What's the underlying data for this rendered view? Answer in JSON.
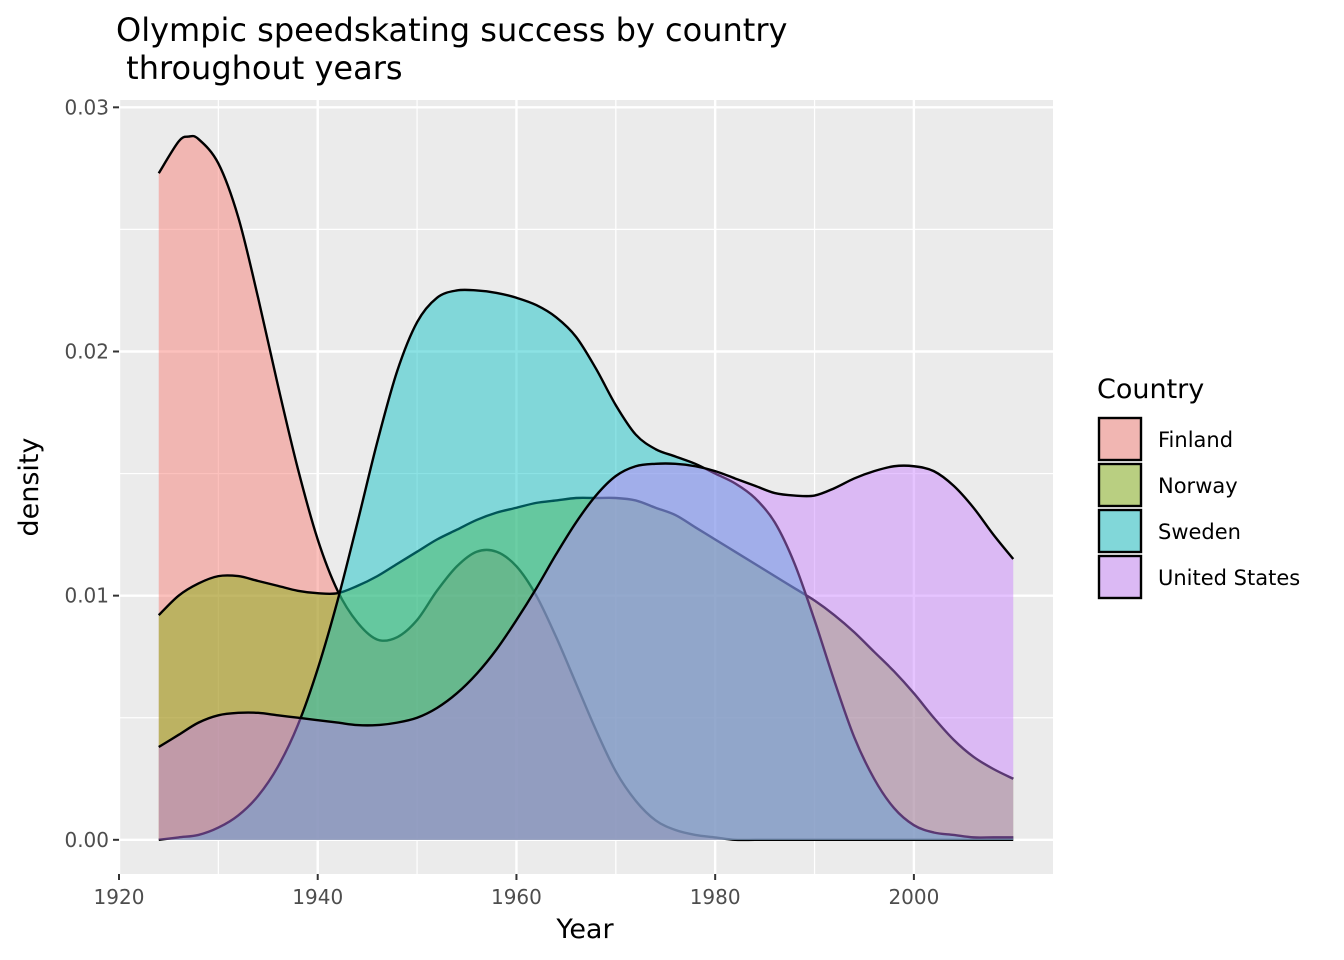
{
  "chart_data": {
    "type": "area",
    "title_lines": [
      "Olympic speedskating success by country",
      " throughout years"
    ],
    "xlabel": "Year",
    "ylabel": "density",
    "xlim": [
      1920,
      2014
    ],
    "ylim": [
      -0.0014,
      0.0303
    ],
    "x_ticks": [
      1920,
      1940,
      1960,
      1980,
      2000
    ],
    "x_tick_labels": [
      "1920",
      "1940",
      "1960",
      "1980",
      "2000"
    ],
    "y_ticks": [
      0,
      0.01,
      0.02,
      0.03
    ],
    "y_tick_labels": [
      "0.00",
      "0.01",
      "0.02",
      "0.03"
    ],
    "grid": true,
    "legend": {
      "title": "Country",
      "position": "right"
    },
    "series": [
      {
        "name": "Finland",
        "color": "#F8766D",
        "x": [
          1924,
          1926,
          1927,
          1928,
          1930,
          1932,
          1934,
          1936,
          1938,
          1940,
          1942,
          1944,
          1946,
          1948,
          1950,
          1952,
          1954,
          1956,
          1958,
          1960,
          1962,
          1964,
          1966,
          1968,
          1970,
          1972,
          1974,
          1976,
          1978,
          1980,
          1982,
          1984,
          1986,
          1988,
          1990,
          1992,
          1994,
          1996,
          1998,
          2000,
          2002,
          2004,
          2006,
          2008,
          2010
        ],
        "y": [
          0.0273,
          0.0286,
          0.0288,
          0.0287,
          0.0277,
          0.0255,
          0.0222,
          0.0186,
          0.0152,
          0.0123,
          0.0102,
          0.0089,
          0.0082,
          0.0083,
          0.009,
          0.0102,
          0.0112,
          0.0118,
          0.0118,
          0.0112,
          0.01,
          0.0083,
          0.0064,
          0.0045,
          0.0028,
          0.0016,
          0.0008,
          0.0004,
          0.0002,
          0.0001,
          0.0,
          0.0,
          0.0,
          0.0,
          0.0,
          0.0,
          0.0,
          0.0,
          0.0,
          0.0,
          0.0,
          0.0,
          0.0,
          0.0,
          0.0
        ]
      },
      {
        "name": "Norway",
        "color": "#7CAE00",
        "x": [
          1924,
          1926,
          1928,
          1930,
          1932,
          1934,
          1936,
          1938,
          1940,
          1942,
          1944,
          1946,
          1948,
          1950,
          1952,
          1954,
          1956,
          1958,
          1960,
          1962,
          1964,
          1966,
          1968,
          1970,
          1972,
          1974,
          1976,
          1978,
          1980,
          1982,
          1984,
          1986,
          1988,
          1990,
          1992,
          1994,
          1996,
          1998,
          2000,
          2002,
          2004,
          2006,
          2008,
          2010
        ],
        "y": [
          0.0092,
          0.01,
          0.0105,
          0.0108,
          0.0108,
          0.0106,
          0.0104,
          0.0102,
          0.0101,
          0.0101,
          0.0104,
          0.0108,
          0.0113,
          0.0118,
          0.0123,
          0.0127,
          0.0131,
          0.0134,
          0.0136,
          0.0138,
          0.0139,
          0.014,
          0.014,
          0.014,
          0.0139,
          0.0136,
          0.0133,
          0.0128,
          0.0123,
          0.0118,
          0.0113,
          0.0108,
          0.0103,
          0.0098,
          0.0092,
          0.0085,
          0.0077,
          0.0069,
          0.006,
          0.005,
          0.0041,
          0.0034,
          0.0029,
          0.0025
        ]
      },
      {
        "name": "Sweden",
        "color": "#00BFC4",
        "x": [
          1924,
          1926,
          1928,
          1930,
          1932,
          1934,
          1936,
          1938,
          1940,
          1942,
          1944,
          1946,
          1948,
          1950,
          1952,
          1954,
          1956,
          1958,
          1960,
          1962,
          1964,
          1966,
          1968,
          1970,
          1972,
          1974,
          1976,
          1978,
          1980,
          1982,
          1984,
          1986,
          1988,
          1990,
          1992,
          1994,
          1996,
          1998,
          2000,
          2002,
          2004,
          2006,
          2008,
          2010
        ],
        "y": [
          0.0,
          0.0001,
          0.0002,
          0.0005,
          0.001,
          0.0018,
          0.003,
          0.0047,
          0.007,
          0.0098,
          0.013,
          0.0163,
          0.0192,
          0.0212,
          0.0222,
          0.0225,
          0.0225,
          0.0224,
          0.0222,
          0.0219,
          0.0214,
          0.0206,
          0.0193,
          0.0178,
          0.0166,
          0.016,
          0.0157,
          0.0154,
          0.015,
          0.0146,
          0.014,
          0.013,
          0.0113,
          0.009,
          0.0065,
          0.0042,
          0.0025,
          0.0013,
          0.0006,
          0.0003,
          0.0002,
          0.0001,
          0.0001,
          0.0001
        ]
      },
      {
        "name": "United States",
        "color": "#C77CFF",
        "x": [
          1924,
          1926,
          1928,
          1930,
          1932,
          1934,
          1936,
          1938,
          1940,
          1942,
          1944,
          1946,
          1948,
          1950,
          1952,
          1954,
          1956,
          1958,
          1960,
          1962,
          1964,
          1966,
          1968,
          1970,
          1972,
          1974,
          1976,
          1978,
          1980,
          1982,
          1984,
          1986,
          1988,
          1990,
          1992,
          1994,
          1996,
          1998,
          2000,
          2002,
          2004,
          2006,
          2008,
          2010
        ],
        "y": [
          0.0038,
          0.0043,
          0.0048,
          0.0051,
          0.0052,
          0.0052,
          0.0051,
          0.005,
          0.0049,
          0.0048,
          0.0047,
          0.0047,
          0.0048,
          0.005,
          0.0054,
          0.006,
          0.0068,
          0.0078,
          0.009,
          0.0103,
          0.0117,
          0.013,
          0.0141,
          0.0149,
          0.0153,
          0.0154,
          0.0154,
          0.0153,
          0.0151,
          0.0148,
          0.0145,
          0.0142,
          0.0141,
          0.0141,
          0.0144,
          0.0148,
          0.0151,
          0.0153,
          0.0153,
          0.0151,
          0.0145,
          0.0136,
          0.0125,
          0.0115
        ]
      }
    ]
  }
}
